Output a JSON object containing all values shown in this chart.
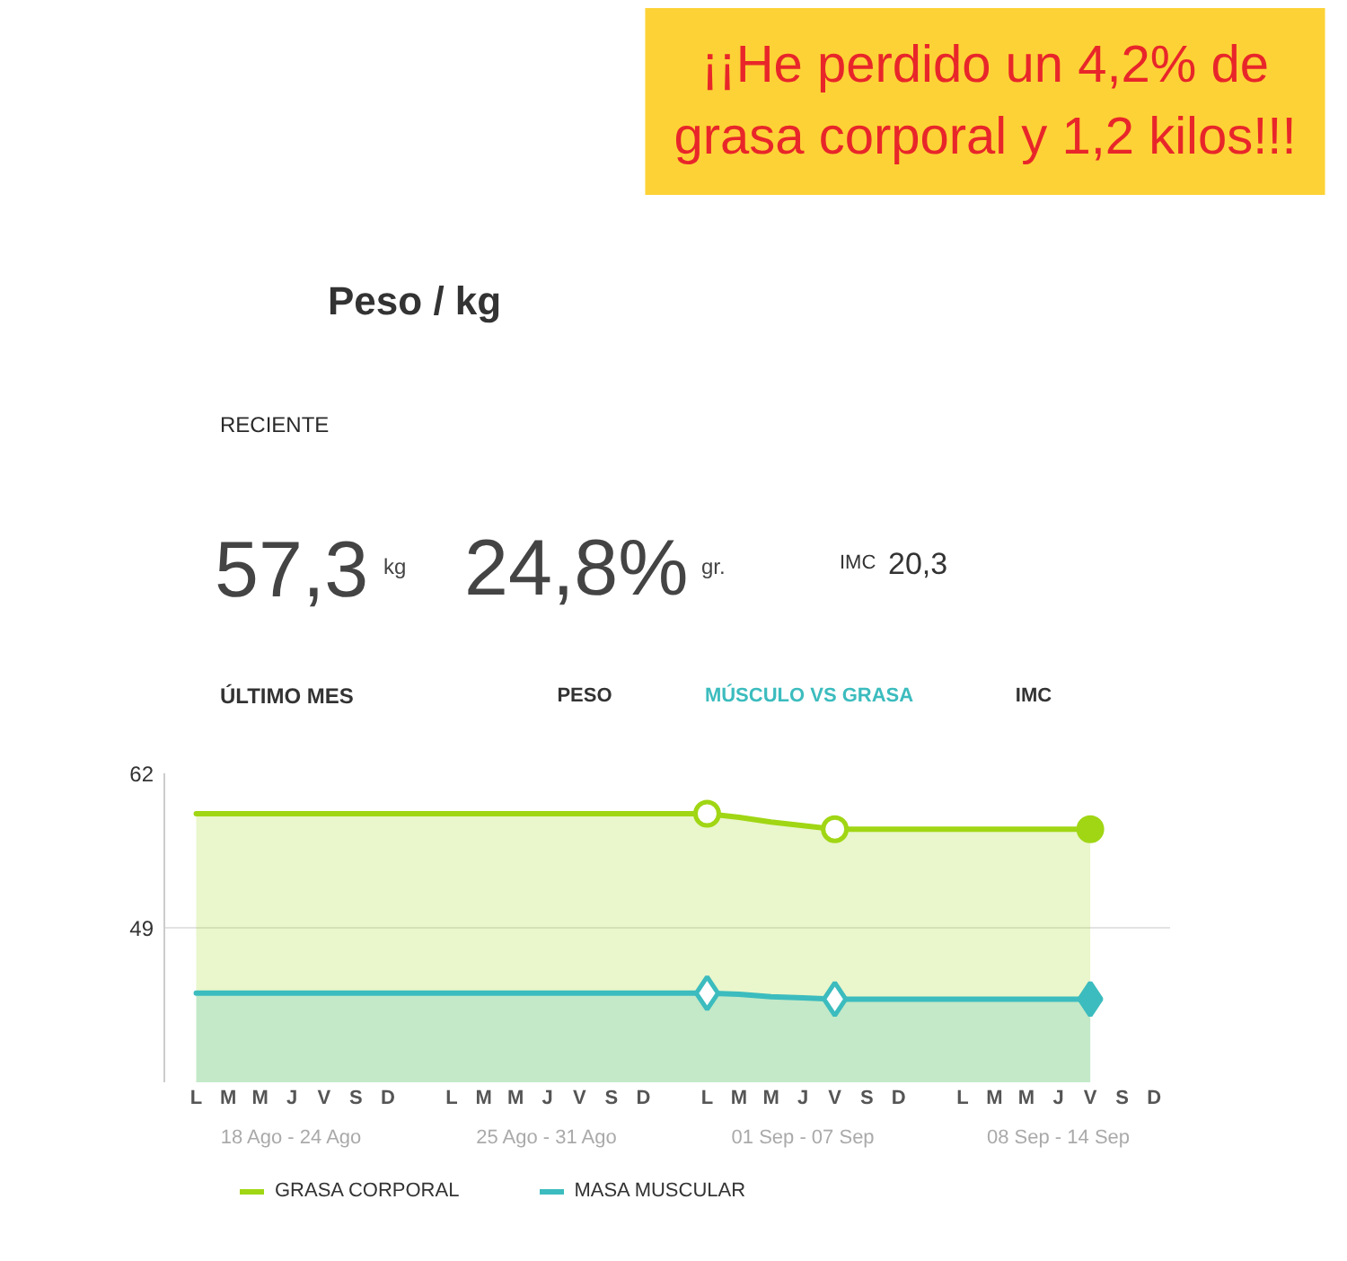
{
  "chart_data": [
    {
      "type": "other",
      "title": "Peso / kg",
      "annotations": [
        "¡¡He perdido un 4,2% de\ngrasa corporal y 1,2 kilos!!!",
        "RECIENTE",
        "57,3",
        "kg",
        "24,8%",
        "gr.",
        "IMC",
        "20,3",
        "ÚLTIMO MES",
        "PESO",
        "MÚSCULO VS GRASA",
        "IMC"
      ]
    },
    {
      "type": "area",
      "categories": [
        "L",
        "M",
        "M",
        "J",
        "V",
        "S",
        "D",
        "L",
        "M",
        "M",
        "J",
        "V",
        "S",
        "D",
        "L",
        "M",
        "M",
        "J",
        "V",
        "S",
        "D",
        "L",
        "M",
        "M",
        "J",
        "V",
        "S",
        "D"
      ],
      "ylim": [
        36,
        62
      ],
      "yticks": [
        49,
        62
      ],
      "grid": "y",
      "legend": "bottom",
      "annotations": [
        "18 Ago - 24 Ago",
        "25 Ago - 31 Ago",
        "01 Sep - 07 Sep",
        "08 Sep - 14 Sep"
      ],
      "series": [
        {
          "name": "GRASA CORPORAL",
          "color": "#a0d614",
          "values": [
            58.6,
            58.6,
            58.6,
            58.6,
            58.6,
            58.6,
            58.6,
            58.6,
            58.6,
            58.6,
            58.6,
            58.6,
            58.6,
            58.6,
            58.6,
            58.3,
            57.9,
            57.6,
            57.3,
            57.3,
            57.3,
            57.3,
            57.3,
            57.3,
            57.3,
            57.3,
            null,
            null
          ]
        },
        {
          "name": "MASA MUSCULAR",
          "color": "#3cbcbe",
          "values": [
            43.5,
            43.5,
            43.5,
            43.5,
            43.5,
            43.5,
            43.5,
            43.5,
            43.5,
            43.5,
            43.5,
            43.5,
            43.5,
            43.5,
            43.5,
            43.4,
            43.2,
            43.1,
            43.0,
            43.0,
            43.0,
            43.0,
            43.0,
            43.0,
            43.0,
            43.0,
            null,
            null
          ]
        },
        {
          "type": "scatter",
          "color": "#a0d614",
          "marker": "circle",
          "values": [
            null,
            null,
            null,
            null,
            null,
            null,
            null,
            null,
            null,
            null,
            null,
            null,
            null,
            null,
            58.6,
            null,
            null,
            null,
            57.3,
            null,
            null,
            null,
            null,
            null,
            null,
            57.3,
            null,
            null
          ]
        },
        {
          "type": "scatter",
          "color": "#3cbcbe",
          "marker": "diamond",
          "values": [
            null,
            null,
            null,
            null,
            null,
            null,
            null,
            null,
            null,
            null,
            null,
            null,
            null,
            null,
            43.5,
            null,
            null,
            null,
            43.0,
            null,
            null,
            null,
            null,
            null,
            null,
            43.0,
            null,
            null
          ]
        }
      ]
    }
  ]
}
